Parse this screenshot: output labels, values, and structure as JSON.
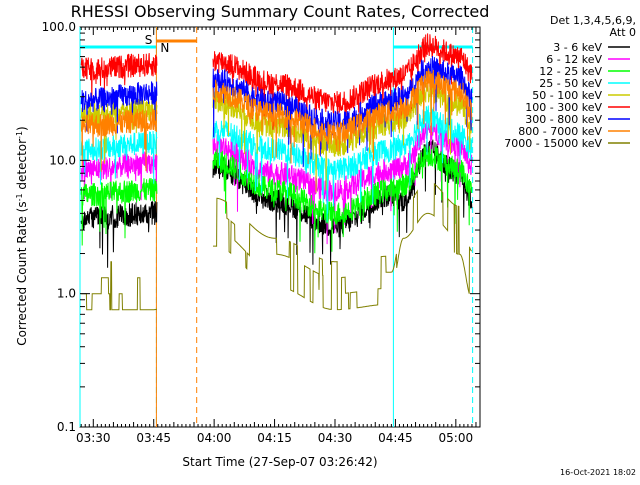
{
  "chart_data": {
    "type": "line",
    "title": "RHESSI Observing Summary Count Rates, Corrected",
    "xlabel": "Start Time (27-Sep-07 03:26:42)",
    "ylabel": "Corrected Count Rate (s-1 detector-1)",
    "ylabel_parts": {
      "pre": "Corrected Count Rate (s",
      "sup1": "-1",
      "mid": " detector",
      "sup2": "-1",
      "post": ")"
    },
    "yscale": "log",
    "ylim": [
      0.1,
      100.0
    ],
    "xlim": [
      "03:26:42",
      "05:06:00"
    ],
    "x_tick_labels": [
      "03:30",
      "03:45",
      "04:00",
      "04:15",
      "04:30",
      "04:45",
      "05:00"
    ],
    "y_tick_labels": [
      "0.1",
      "1.0",
      "10.0",
      "100.0"
    ],
    "legend_header": [
      "Det 1,3,4,5,6,9,",
      "Att 0"
    ],
    "annotations": {
      "saa": "S",
      "night": "N",
      "stamp": "16-Oct-2021 18:02"
    },
    "series": [
      {
        "name": "3 - 6 keV",
        "color": "#000000",
        "points": [
          [
            "03:27",
            3.6
          ],
          [
            "03:45",
            4.0
          ],
          [
            "04:00",
            9.0
          ],
          [
            "04:15",
            5.0
          ],
          [
            "04:30",
            3.2
          ],
          [
            "04:44",
            5.5
          ],
          [
            "04:47",
            5.0
          ],
          [
            "04:53",
            12.0
          ],
          [
            "05:01",
            8.0
          ],
          [
            "05:04",
            5.0
          ]
        ]
      },
      {
        "name": "6 - 12 keV",
        "color": "#ff00ff",
        "points": [
          [
            "03:27",
            8.5
          ],
          [
            "03:45",
            9.5
          ],
          [
            "04:00",
            13.0
          ],
          [
            "04:15",
            8.0
          ],
          [
            "04:30",
            6.0
          ],
          [
            "04:44",
            8.5
          ],
          [
            "04:47",
            9.0
          ],
          [
            "04:53",
            17.0
          ],
          [
            "05:01",
            13.0
          ],
          [
            "05:04",
            9.0
          ]
        ]
      },
      {
        "name": "12 - 25 keV",
        "color": "#00ff00",
        "points": [
          [
            "03:27",
            5.5
          ],
          [
            "03:45",
            6.0
          ],
          [
            "04:00",
            10.0
          ],
          [
            "04:15",
            6.0
          ],
          [
            "04:30",
            4.0
          ],
          [
            "04:44",
            6.0
          ],
          [
            "04:47",
            6.5
          ],
          [
            "04:53",
            11.0
          ],
          [
            "05:01",
            8.5
          ],
          [
            "05:04",
            6.0
          ]
        ]
      },
      {
        "name": "25 - 50 keV",
        "color": "#00ffff",
        "points": [
          [
            "03:27",
            12.0
          ],
          [
            "03:45",
            13.5
          ],
          [
            "04:00",
            17.0
          ],
          [
            "04:15",
            12.0
          ],
          [
            "04:30",
            8.5
          ],
          [
            "04:44",
            12.0
          ],
          [
            "04:47",
            13.0
          ],
          [
            "04:53",
            21.0
          ],
          [
            "05:01",
            16.0
          ],
          [
            "05:04",
            12.0
          ]
        ]
      },
      {
        "name": "50 - 100 keV",
        "color": "#cccc00",
        "points": [
          [
            "03:27",
            22.0
          ],
          [
            "03:45",
            24.0
          ],
          [
            "04:00",
            28.0
          ],
          [
            "04:15",
            18.0
          ],
          [
            "04:30",
            13.0
          ],
          [
            "04:44",
            19.0
          ],
          [
            "04:47",
            21.0
          ],
          [
            "04:53",
            33.0
          ],
          [
            "05:01",
            26.0
          ],
          [
            "05:04",
            19.0
          ]
        ]
      },
      {
        "name": "100 - 300 keV",
        "color": "#ff0000",
        "points": [
          [
            "03:27",
            48.0
          ],
          [
            "03:45",
            52.0
          ],
          [
            "04:00",
            56.0
          ],
          [
            "04:15",
            38.0
          ],
          [
            "04:30",
            27.0
          ],
          [
            "04:44",
            40.0
          ],
          [
            "04:47",
            44.0
          ],
          [
            "04:53",
            73.0
          ],
          [
            "05:01",
            60.0
          ],
          [
            "05:04",
            45.0
          ]
        ]
      },
      {
        "name": "300 - 800 keV",
        "color": "#0000ff",
        "points": [
          [
            "03:27",
            28.0
          ],
          [
            "03:45",
            32.0
          ],
          [
            "04:00",
            40.0
          ],
          [
            "04:15",
            27.0
          ],
          [
            "04:30",
            19.0
          ],
          [
            "04:44",
            28.0
          ],
          [
            "04:47",
            30.0
          ],
          [
            "04:53",
            50.0
          ],
          [
            "05:01",
            42.0
          ],
          [
            "05:04",
            30.0
          ]
        ]
      },
      {
        "name": "800 - 7000 keV",
        "color": "#ff8000",
        "points": [
          [
            "03:27",
            18.0
          ],
          [
            "03:45",
            20.0
          ],
          [
            "04:00",
            33.0
          ],
          [
            "04:15",
            22.0
          ],
          [
            "04:30",
            16.0
          ],
          [
            "04:44",
            23.0
          ],
          [
            "04:47",
            25.0
          ],
          [
            "04:53",
            40.0
          ],
          [
            "05:01",
            33.0
          ],
          [
            "05:04",
            24.0
          ]
        ]
      },
      {
        "name": "7000 - 15000 keV",
        "color": "#808000",
        "points": [
          [
            "03:27",
            1.0
          ],
          [
            "03:45",
            1.0
          ],
          [
            "04:00",
            3.0
          ],
          [
            "04:15",
            1.5
          ],
          [
            "04:30",
            1.0
          ],
          [
            "04:44",
            1.1
          ],
          [
            "04:47",
            2.6
          ],
          [
            "04:53",
            4.0
          ],
          [
            "05:01",
            2.6
          ],
          [
            "05:04",
            1.2
          ]
        ]
      }
    ],
    "flags": {
      "saa": {
        "color": "#ff8000",
        "intervals": [
          [
            "03:45:40",
            "03:55:40"
          ]
        ]
      },
      "night": {
        "color": "#00ffff",
        "intervals": [
          [
            "03:26:42",
            "03:45:40"
          ],
          [
            "04:44:30",
            "05:04:10"
          ]
        ]
      }
    },
    "grid": false,
    "legend_position": "outside-right"
  }
}
